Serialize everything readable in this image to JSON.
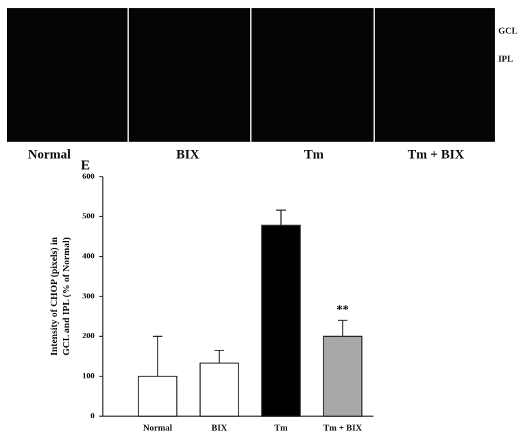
{
  "image_panel": {
    "labels": [
      "Normal",
      "BIX",
      "Tm",
      "Tm + BIX"
    ],
    "layers": [
      "GCL",
      "IPL"
    ]
  },
  "chart_data": {
    "type": "bar",
    "panel_label": "E",
    "y_label": [
      "Intensity of CHOP (pixels) in",
      "GCL and IPL (% of Normal)"
    ],
    "categories": [
      "Normal",
      "BIX",
      "Tm",
      "Tm + BIX"
    ],
    "values": [
      100,
      133,
      478,
      200
    ],
    "errors": [
      100,
      32,
      38,
      40
    ],
    "colors": [
      "#ffffff",
      "#ffffff",
      "#000000",
      "#a8a8a8"
    ],
    "annotations": [
      {
        "text": "**",
        "index": 3
      }
    ],
    "ylim": [
      0,
      600
    ],
    "yticks": [
      0,
      100,
      200,
      300,
      400,
      500,
      600
    ],
    "grid": false
  }
}
